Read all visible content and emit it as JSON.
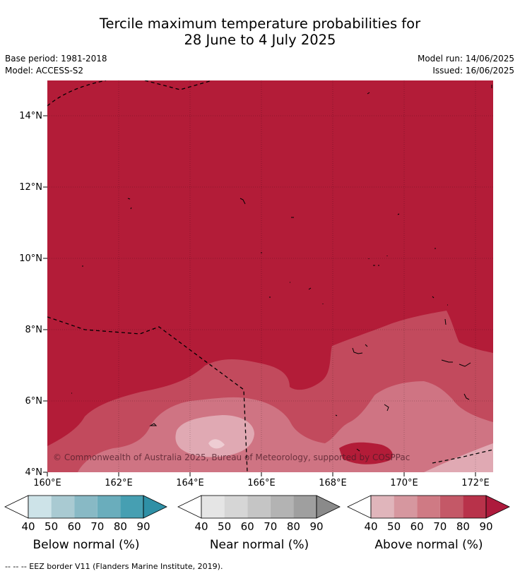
{
  "title": {
    "line1": "Tercile maximum temperature probabilities for",
    "line2": "28 June to 4 July 2025"
  },
  "meta": {
    "base_period": "Base period: 1981-2018",
    "model": "Model: ACCESS-S2",
    "model_run": "Model run: 14/06/2025",
    "issued": "Issued: 16/06/2025"
  },
  "map": {
    "lat_labels": [
      "14°N",
      "12°N",
      "10°N",
      "8°N",
      "6°N",
      "4°N"
    ],
    "lon_labels": [
      "160°E",
      "162°E",
      "164°E",
      "166°E",
      "168°E",
      "170°E",
      "172°E"
    ],
    "copyright": "© Commonwealth of Australia 2025, Bureau of Meteorology, supported by COSPPac",
    "dominant_category": "Above normal",
    "dominant_probability_band": "80-90%",
    "colors": {
      "above_80": "#b31c38",
      "above_70": "#c24a5d",
      "above_60": "#cf7483",
      "above_50": "#e0a9b3",
      "above_40": "#eecdd3"
    }
  },
  "legends": [
    {
      "title": "Below normal (%)",
      "ticks": [
        "40",
        "50",
        "60",
        "70",
        "80",
        "90"
      ],
      "colors": [
        "#cde3e8",
        "#a9cad2",
        "#88b9c5",
        "#6aadbc",
        "#469fb2",
        "#2f90a6"
      ]
    },
    {
      "title": "Near normal (%)",
      "ticks": [
        "40",
        "50",
        "60",
        "70",
        "80",
        "90"
      ],
      "colors": [
        "#e5e5e5",
        "#d6d6d6",
        "#c5c5c5",
        "#b3b3b3",
        "#9f9f9f",
        "#8a8a8a"
      ]
    },
    {
      "title": "Above normal (%)",
      "ticks": [
        "40",
        "50",
        "60",
        "70",
        "80",
        "90"
      ],
      "colors": [
        "#e0b5bb",
        "#d6979f",
        "#cf7a84",
        "#c45867",
        "#b8324a",
        "#ad1a3c"
      ]
    }
  ],
  "footer": "--  --  -- EEZ border V11 (Flanders Marine Institute, 2019)."
}
